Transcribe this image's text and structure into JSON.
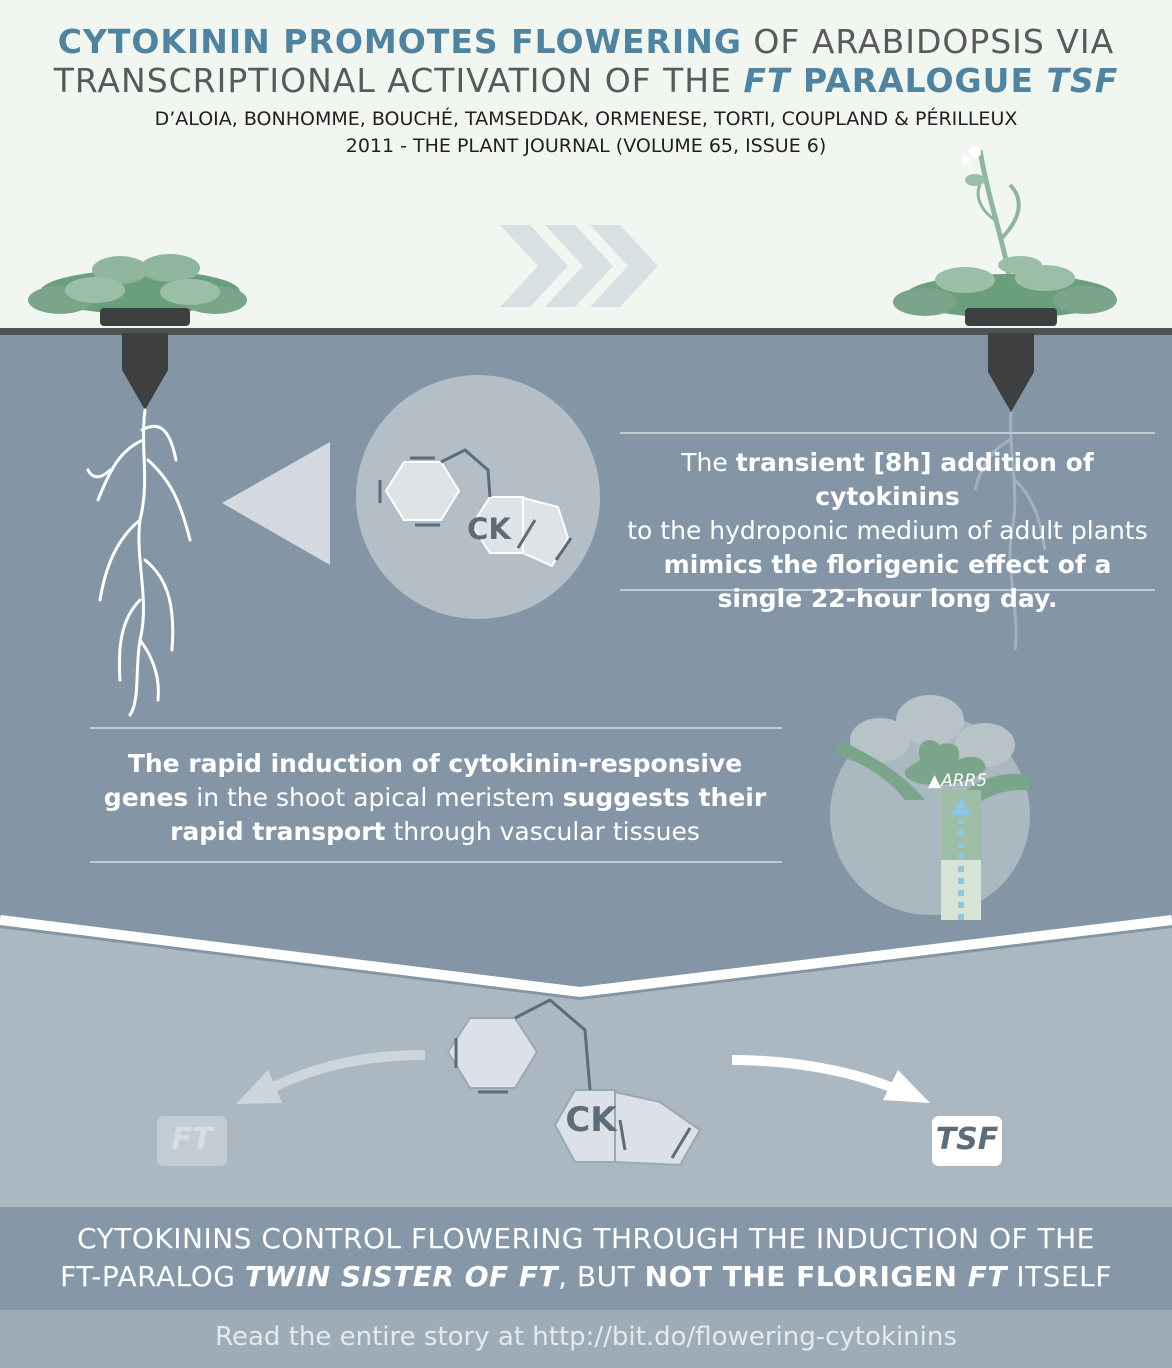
{
  "title": {
    "line1_highlight": "CYTOKININ PROMOTES FLOWERING",
    "line1_rest": " OF ARABIDOPSIS VIA",
    "line2_start": "TRANSCRIPTIONAL ACTIVATION OF THE ",
    "line2_ft": "FT",
    "line2_mid": " PARALOGUE ",
    "line2_tsf": "TSF"
  },
  "citation": {
    "authors": "D’ALOIA, BONHOMME, BOUCHÉ, TAMSEDDAK, ORMENESE, TORTI, COUPLAND & PÉRILLEUX",
    "journal": "2011 - THE PLANT JOURNAL (VOLUME 65, ISSUE 6)"
  },
  "finding1": {
    "p1": "The ",
    "b1": "transient [8h] addition of cytokinins",
    "p2": "to the hydroponic medium of adult plants",
    "b2": "mimics the florigenic effect of a single 22-hour long day."
  },
  "finding2": {
    "b1": "The rapid induction of cytokinin-responsive genes",
    "p1": " in the shoot apical meristem ",
    "b2": "suggests their rapid transport",
    "p2": " through vascular tissues"
  },
  "labels": {
    "ck_top": "CK",
    "ck_bottom": "CK",
    "arr5": "▲ARR5",
    "ft": "FT",
    "tsf": "TSF"
  },
  "conclusion": {
    "line1": "CYTOKININS CONTROL FLOWERING THROUGH THE INDUCTION OF THE",
    "line2_a": "FT-PARALOG ",
    "line2_b": "TWIN SISTER OF FT",
    "line2_c": ", BUT ",
    "line2_d": "NOT THE FLORIGEN ",
    "line2_e": "FT",
    "line2_f": " ITSELF"
  },
  "footer": {
    "text": "Read the entire story at http://bit.do/flowering-cytokinins"
  },
  "colors": {
    "sky": "#f1f6f0",
    "water": "#8496a5",
    "lower": "#abb8c1",
    "band": "#8698a7",
    "footer_bg": "#9eacb7",
    "accent": "#4f83a0",
    "leaf": "#7aa58a"
  }
}
